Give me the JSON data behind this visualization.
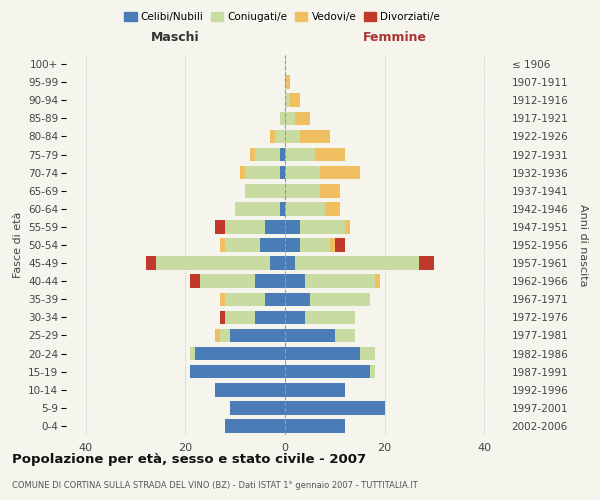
{
  "age_groups": [
    "0-4",
    "5-9",
    "10-14",
    "15-19",
    "20-24",
    "25-29",
    "30-34",
    "35-39",
    "40-44",
    "45-49",
    "50-54",
    "55-59",
    "60-64",
    "65-69",
    "70-74",
    "75-79",
    "80-84",
    "85-89",
    "90-94",
    "95-99",
    "100+"
  ],
  "birth_years": [
    "2002-2006",
    "1997-2001",
    "1992-1996",
    "1987-1991",
    "1982-1986",
    "1977-1981",
    "1972-1976",
    "1967-1971",
    "1962-1966",
    "1957-1961",
    "1952-1956",
    "1947-1951",
    "1942-1946",
    "1937-1941",
    "1932-1936",
    "1927-1931",
    "1922-1926",
    "1917-1921",
    "1912-1916",
    "1907-1911",
    "≤ 1906"
  ],
  "maschi": {
    "celibi": [
      12,
      11,
      14,
      19,
      18,
      11,
      6,
      4,
      6,
      3,
      5,
      4,
      1,
      0,
      1,
      1,
      0,
      0,
      0,
      0,
      0
    ],
    "coniugati": [
      0,
      0,
      0,
      0,
      1,
      2,
      6,
      8,
      11,
      23,
      7,
      8,
      9,
      8,
      7,
      5,
      2,
      1,
      0,
      0,
      0
    ],
    "vedovi": [
      0,
      0,
      0,
      0,
      0,
      1,
      0,
      1,
      0,
      0,
      1,
      0,
      0,
      0,
      1,
      1,
      1,
      0,
      0,
      0,
      0
    ],
    "divorziati": [
      0,
      0,
      0,
      0,
      0,
      0,
      1,
      0,
      2,
      2,
      0,
      2,
      0,
      0,
      0,
      0,
      0,
      0,
      0,
      0,
      0
    ]
  },
  "femmine": {
    "nubili": [
      12,
      20,
      12,
      17,
      15,
      10,
      4,
      5,
      4,
      2,
      3,
      3,
      0,
      0,
      0,
      0,
      0,
      0,
      0,
      0,
      0
    ],
    "coniugate": [
      0,
      0,
      0,
      1,
      3,
      4,
      10,
      12,
      14,
      25,
      6,
      9,
      8,
      7,
      7,
      6,
      3,
      2,
      1,
      0,
      0
    ],
    "vedove": [
      0,
      0,
      0,
      0,
      0,
      0,
      0,
      0,
      1,
      0,
      1,
      1,
      3,
      4,
      8,
      6,
      6,
      3,
      2,
      1,
      0
    ],
    "divorziate": [
      0,
      0,
      0,
      0,
      0,
      0,
      0,
      0,
      0,
      3,
      2,
      0,
      0,
      0,
      0,
      0,
      0,
      0,
      0,
      0,
      0
    ]
  },
  "colors": {
    "celibi": "#4a7cb5",
    "coniugati": "#c8dba0",
    "vedovi": "#f0c060",
    "divorziati": "#c0392b"
  },
  "xlim": 44,
  "title": "Popolazione per età, sesso e stato civile - 2007",
  "subtitle": "COMUNE DI CORTINA SULLA STRADA DEL VINO (BZ) - Dati ISTAT 1° gennaio 2007 - TUTTITALIA.IT",
  "ylabel_left": "Fasce di età",
  "ylabel_right": "Anni di nascita",
  "xlabel_left": "Maschi",
  "xlabel_right": "Femmine",
  "background": "#f5f5ee",
  "grid_color": "#cccccc"
}
